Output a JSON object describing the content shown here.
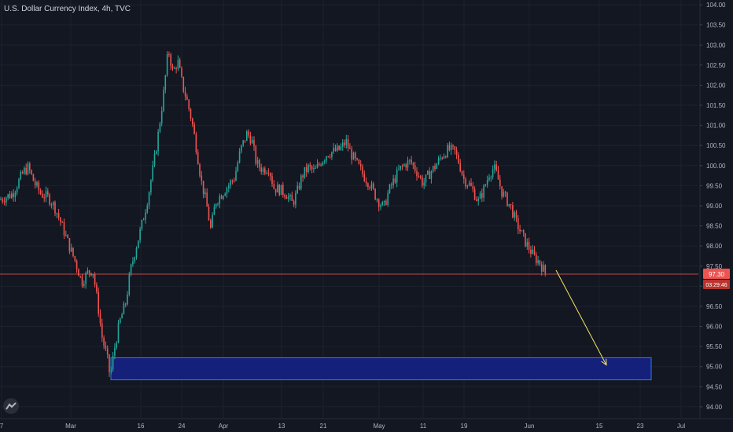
{
  "header": {
    "title": "U.S. Dollar Currency Index, 4h, TVC"
  },
  "logo": {
    "icon": "tradingview-logo-icon"
  },
  "price_label": {
    "value": "97.30",
    "countdown": "03:29:46"
  },
  "colors": {
    "background": "#131722",
    "up": "#26a69a",
    "down": "#ef5350",
    "grid": "#1e222d",
    "price_line": "#ef5350",
    "zone_fill": "#14207a",
    "zone_stroke": "#2d7fd8",
    "arrow": "#f5e663"
  },
  "chart_data": {
    "type": "candlestick",
    "title": "U.S. Dollar Currency Index, 4h, TVC",
    "ylim": [
      93.9,
      104.1
    ],
    "y_ticks": [
      "104.00",
      "103.50",
      "103.00",
      "102.50",
      "102.00",
      "101.50",
      "101.00",
      "100.50",
      "100.00",
      "99.50",
      "99.00",
      "98.50",
      "98.00",
      "97.50",
      "97.00",
      "96.50",
      "96.00",
      "95.50",
      "95.00",
      "94.50",
      "94.00"
    ],
    "x_ticks": [
      "7",
      "Mar",
      "16",
      "24",
      "Apr",
      "13",
      "21",
      "May",
      "11",
      "19",
      "Jun",
      "15",
      "23",
      "Jul"
    ],
    "last_price": 97.3,
    "countdown": "03:29:46",
    "price_path": [
      [
        0,
        99.15
      ],
      [
        16,
        99.3
      ],
      [
        30,
        99.85
      ],
      [
        36,
        99.95
      ],
      [
        44,
        99.55
      ],
      [
        52,
        99.3
      ],
      [
        62,
        99.2
      ],
      [
        70,
        98.95
      ],
      [
        78,
        98.55
      ],
      [
        88,
        98.0
      ],
      [
        96,
        97.6
      ],
      [
        104,
        97.1
      ],
      [
        112,
        97.35
      ],
      [
        118,
        97.4
      ],
      [
        124,
        96.6
      ],
      [
        130,
        95.7
      ],
      [
        136,
        95.25
      ],
      [
        140,
        94.75
      ],
      [
        146,
        95.5
      ],
      [
        152,
        96.1
      ],
      [
        160,
        96.6
      ],
      [
        166,
        97.4
      ],
      [
        172,
        97.9
      ],
      [
        180,
        98.5
      ],
      [
        188,
        99.2
      ],
      [
        196,
        100.1
      ],
      [
        202,
        100.9
      ],
      [
        208,
        101.8
      ],
      [
        214,
        102.9
      ],
      [
        220,
        102.3
      ],
      [
        226,
        102.6
      ],
      [
        232,
        102.0
      ],
      [
        238,
        101.6
      ],
      [
        244,
        101.1
      ],
      [
        250,
        100.4
      ],
      [
        256,
        99.6
      ],
      [
        262,
        99.1
      ],
      [
        268,
        98.4
      ],
      [
        274,
        99.1
      ],
      [
        282,
        99.3
      ],
      [
        290,
        99.5
      ],
      [
        298,
        99.7
      ],
      [
        306,
        100.4
      ],
      [
        314,
        100.8
      ],
      [
        320,
        100.65
      ],
      [
        326,
        100.05
      ],
      [
        334,
        99.9
      ],
      [
        342,
        99.95
      ],
      [
        348,
        99.45
      ],
      [
        356,
        99.4
      ],
      [
        364,
        99.3
      ],
      [
        372,
        99.05
      ],
      [
        378,
        99.35
      ],
      [
        384,
        99.75
      ],
      [
        392,
        99.95
      ],
      [
        400,
        99.85
      ],
      [
        408,
        100.1
      ],
      [
        416,
        100.3
      ],
      [
        424,
        100.35
      ],
      [
        432,
        100.4
      ],
      [
        440,
        100.6
      ],
      [
        446,
        100.3
      ],
      [
        452,
        100.1
      ],
      [
        458,
        99.9
      ],
      [
        464,
        99.7
      ],
      [
        470,
        99.55
      ],
      [
        476,
        99.3
      ],
      [
        482,
        99.1
      ],
      [
        488,
        98.95
      ],
      [
        494,
        99.35
      ],
      [
        500,
        99.6
      ],
      [
        508,
        99.9
      ],
      [
        516,
        100.05
      ],
      [
        522,
        100.1
      ],
      [
        530,
        99.85
      ],
      [
        538,
        99.55
      ],
      [
        546,
        99.8
      ],
      [
        554,
        100.0
      ],
      [
        562,
        100.25
      ],
      [
        570,
        100.4
      ],
      [
        578,
        100.35
      ],
      [
        584,
        100.05
      ],
      [
        590,
        99.65
      ],
      [
        596,
        99.55
      ],
      [
        602,
        99.35
      ],
      [
        608,
        99.1
      ],
      [
        616,
        99.45
      ],
      [
        622,
        99.8
      ],
      [
        628,
        99.95
      ],
      [
        632,
        99.75
      ],
      [
        638,
        99.35
      ],
      [
        644,
        99.15
      ],
      [
        650,
        98.95
      ],
      [
        656,
        98.6
      ],
      [
        662,
        98.35
      ],
      [
        668,
        98.1
      ],
      [
        674,
        97.9
      ],
      [
        680,
        97.7
      ],
      [
        686,
        97.6
      ],
      [
        690,
        97.45
      ],
      [
        694,
        97.3
      ]
    ],
    "demand_zone": {
      "low": 94.67,
      "high": 95.22
    },
    "projection": {
      "from_price": 97.3,
      "to_price": 95.0
    }
  }
}
